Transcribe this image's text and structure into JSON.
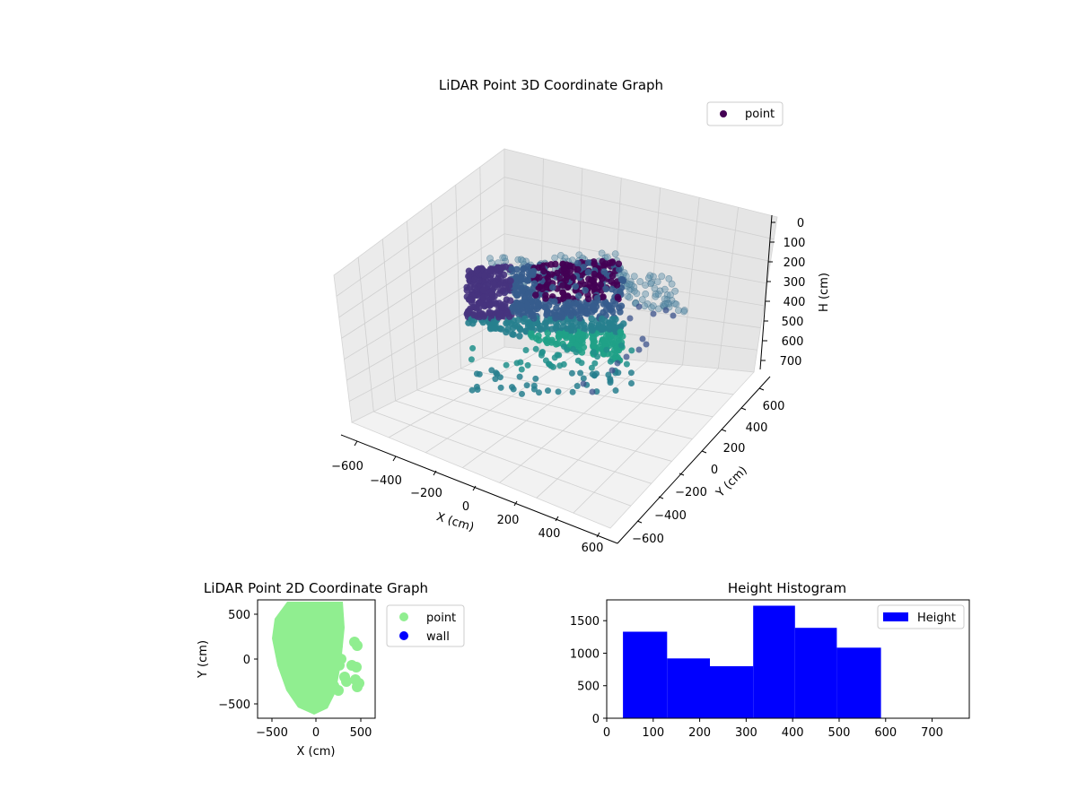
{
  "chart_data": [
    {
      "type": "scatter",
      "title": "LiDAR Point 3D Coordinate Graph",
      "xlabel": "X (cm)",
      "ylabel": "Y (cm)",
      "zlabel": "H (cm)",
      "x_ticks": [
        "−600",
        "−400",
        "−200",
        "0",
        "200",
        "400",
        "600"
      ],
      "y_ticks": [
        "600",
        "400",
        "200",
        "0",
        "−200",
        "−400",
        "−600"
      ],
      "z_ticks": [
        "0",
        "100",
        "200",
        "300",
        "400",
        "500",
        "600",
        "700"
      ],
      "xlim": [
        -600,
        600
      ],
      "ylim": [
        -600,
        600
      ],
      "zlim": [
        0,
        750
      ],
      "z_inverted": true,
      "colormap": "viridis",
      "grid": true,
      "legend_placement": "top-right",
      "legend": [
        {
          "label": "point",
          "color": "#440154"
        }
      ]
    },
    {
      "type": "scatter",
      "title": "LiDAR Point 2D Coordinate Graph",
      "xlabel": "X (cm)",
      "ylabel": "Y (cm)",
      "x_ticks": [
        "−500",
        "0",
        "500"
      ],
      "y_ticks": [
        "500",
        "0",
        "−500"
      ],
      "xlim": [
        -650,
        650
      ],
      "ylim": [
        -650,
        650
      ],
      "grid": false,
      "legend_placement": "outside-right",
      "legend": [
        {
          "label": "point",
          "color": "#90ee90"
        },
        {
          "label": "wall",
          "color": "#0000ff"
        }
      ]
    },
    {
      "type": "bar",
      "title": "Height Histogram",
      "bins": [
        {
          "start": 35,
          "end": 130,
          "count": 1330
        },
        {
          "start": 130,
          "end": 222,
          "count": 920
        },
        {
          "start": 222,
          "end": 315,
          "count": 800
        },
        {
          "start": 315,
          "end": 405,
          "count": 1730
        },
        {
          "start": 405,
          "end": 495,
          "count": 1390
        },
        {
          "start": 495,
          "end": 590,
          "count": 1085
        }
      ],
      "x_ticks": [
        "0",
        "100",
        "200",
        "300",
        "400",
        "500",
        "600",
        "700"
      ],
      "y_ticks": [
        "0",
        "500",
        "1000",
        "1500"
      ],
      "xlim": [
        0,
        780
      ],
      "ylim": [
        0,
        1820
      ],
      "color": "#0000ff",
      "grid": false,
      "legend_placement": "top-right",
      "legend": [
        {
          "label": "Height",
          "color": "#0000ff"
        }
      ]
    }
  ]
}
